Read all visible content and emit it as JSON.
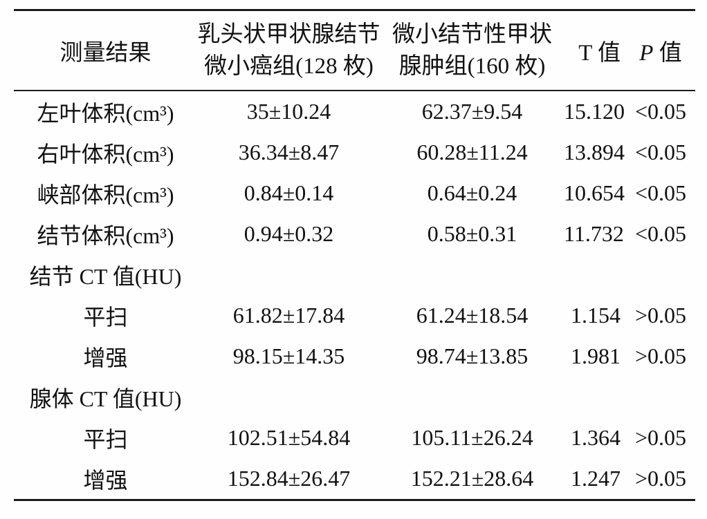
{
  "table": {
    "header": {
      "col1": "测量结果",
      "col2_line1": "乳头状甲状腺结节",
      "col2_line2": "微小癌组(128 枚)",
      "col3_line1": "微小结节性甲状",
      "col3_line2": "腺肿组(160 枚)",
      "col4_letter": "T",
      "col4_rest": " 值",
      "col5_letter": "P",
      "col5_rest": " 值"
    },
    "rows": [
      {
        "label": "左叶体积(cm³)",
        "group1": "35±10.24",
        "group2": "62.37±9.54",
        "t": "15.120",
        "p": "<0.05"
      },
      {
        "label": "右叶体积(cm³)",
        "group1": "36.34±8.47",
        "group2": "60.28±11.24",
        "t": "13.894",
        "p": "<0.05"
      },
      {
        "label": "峡部体积(cm³)",
        "group1": "0.84±0.14",
        "group2": "0.64±0.24",
        "t": "10.654",
        "p": "<0.05"
      },
      {
        "label": "结节体积(cm³)",
        "group1": "0.94±0.32",
        "group2": "0.58±0.31",
        "t": "11.732",
        "p": "<0.05"
      },
      {
        "label": "结节 CT 值(HU)",
        "group1": "",
        "group2": "",
        "t": "",
        "p": ""
      },
      {
        "label": "平扫",
        "group1": "61.82±17.84",
        "group2": "61.24±18.54",
        "t": "1.154",
        "p": ">0.05"
      },
      {
        "label": "增强",
        "group1": "98.15±14.35",
        "group2": "98.74±13.85",
        "t": "1.981",
        "p": ">0.05"
      },
      {
        "label": "腺体 CT 值(HU)",
        "group1": "",
        "group2": "",
        "t": "",
        "p": ""
      },
      {
        "label": "平扫",
        "group1": "102.51±54.84",
        "group2": "105.11±26.24",
        "t": "1.364",
        "p": ">0.05"
      },
      {
        "label": "增强",
        "group1": "152.84±26.47",
        "group2": "152.21±28.64",
        "t": "1.247",
        "p": ">0.05"
      }
    ]
  }
}
